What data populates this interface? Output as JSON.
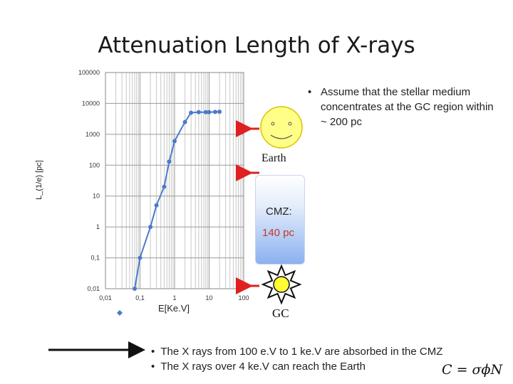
{
  "slide": {
    "title": "Attenuation Length of X-rays"
  },
  "chart_data": {
    "type": "line",
    "xlabel": "E[Ke.V]",
    "ylabel": "L_(1/e) [pc]",
    "x_scale": "log",
    "y_scale": "log",
    "xlim": [
      0.01,
      100
    ],
    "ylim": [
      0.01,
      100000
    ],
    "x_ticks": [
      "0,01",
      "0,1",
      "1",
      "10",
      "100"
    ],
    "y_ticks": [
      "0,01",
      "0,1",
      "1",
      "10",
      "100",
      "1000",
      "10000",
      "100000"
    ],
    "grid": true,
    "legend": "bottom-left",
    "series": [
      {
        "color": "#4a7bc8",
        "x": [
          0.07,
          0.1,
          0.2,
          0.3,
          0.5,
          0.7,
          1.0,
          2.0,
          3.0,
          5.0,
          8.0,
          10.0,
          15.0,
          20.0
        ],
        "y": [
          0.01,
          0.1,
          1,
          5,
          20,
          130,
          600,
          2500,
          5000,
          5200,
          5200,
          5200,
          5300,
          5400
        ]
      }
    ]
  },
  "annotations": {
    "earth_label": "Earth",
    "gc_label": "GC",
    "cmz_label": "CMZ:",
    "cmz_value": "140 pc",
    "note": "Assume that the stellar medium concentrates at the GC region within ~ 200 pc",
    "bullet_1": "The X rays  from 100 e.V to 1 ke.V are absorbed in the CMZ",
    "bullet_2": "The X rays over 4 ke.V can reach the Earth",
    "formula": "C = σϕN",
    "bullet_symbol": "•"
  },
  "colors": {
    "series": "#4a7bc8",
    "arrow_red": "#e02020",
    "sun_yellow": "#ffff33",
    "smiley_yellow": "#ffff88",
    "cmz_blue": "#8ab1f0"
  }
}
